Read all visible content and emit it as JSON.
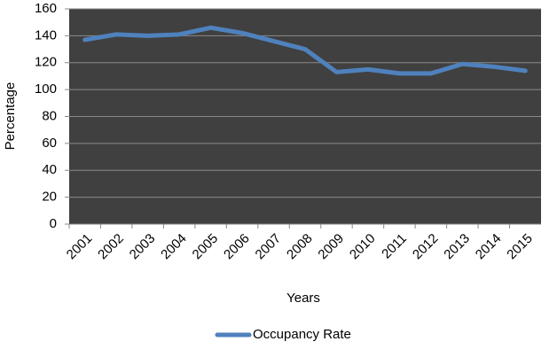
{
  "chart_data": {
    "type": "line",
    "categories": [
      "2001",
      "2002",
      "2003",
      "2004",
      "2005",
      "2006",
      "2007",
      "2008",
      "2009",
      "2010",
      "2011",
      "2012",
      "2013",
      "2014",
      "2015"
    ],
    "series": [
      {
        "name": "Occupancy Rate",
        "color": "#4f81bd",
        "values": [
          137,
          141,
          140,
          141,
          146,
          142,
          136,
          130,
          113,
          115,
          112,
          112,
          119,
          117,
          114
        ]
      }
    ],
    "ylim": [
      0,
      160
    ],
    "yticks": [
      0,
      20,
      40,
      60,
      80,
      100,
      120,
      140,
      160
    ],
    "x_label": "Years",
    "y_label": "Percentage",
    "grid": true,
    "legend": "bottom"
  }
}
